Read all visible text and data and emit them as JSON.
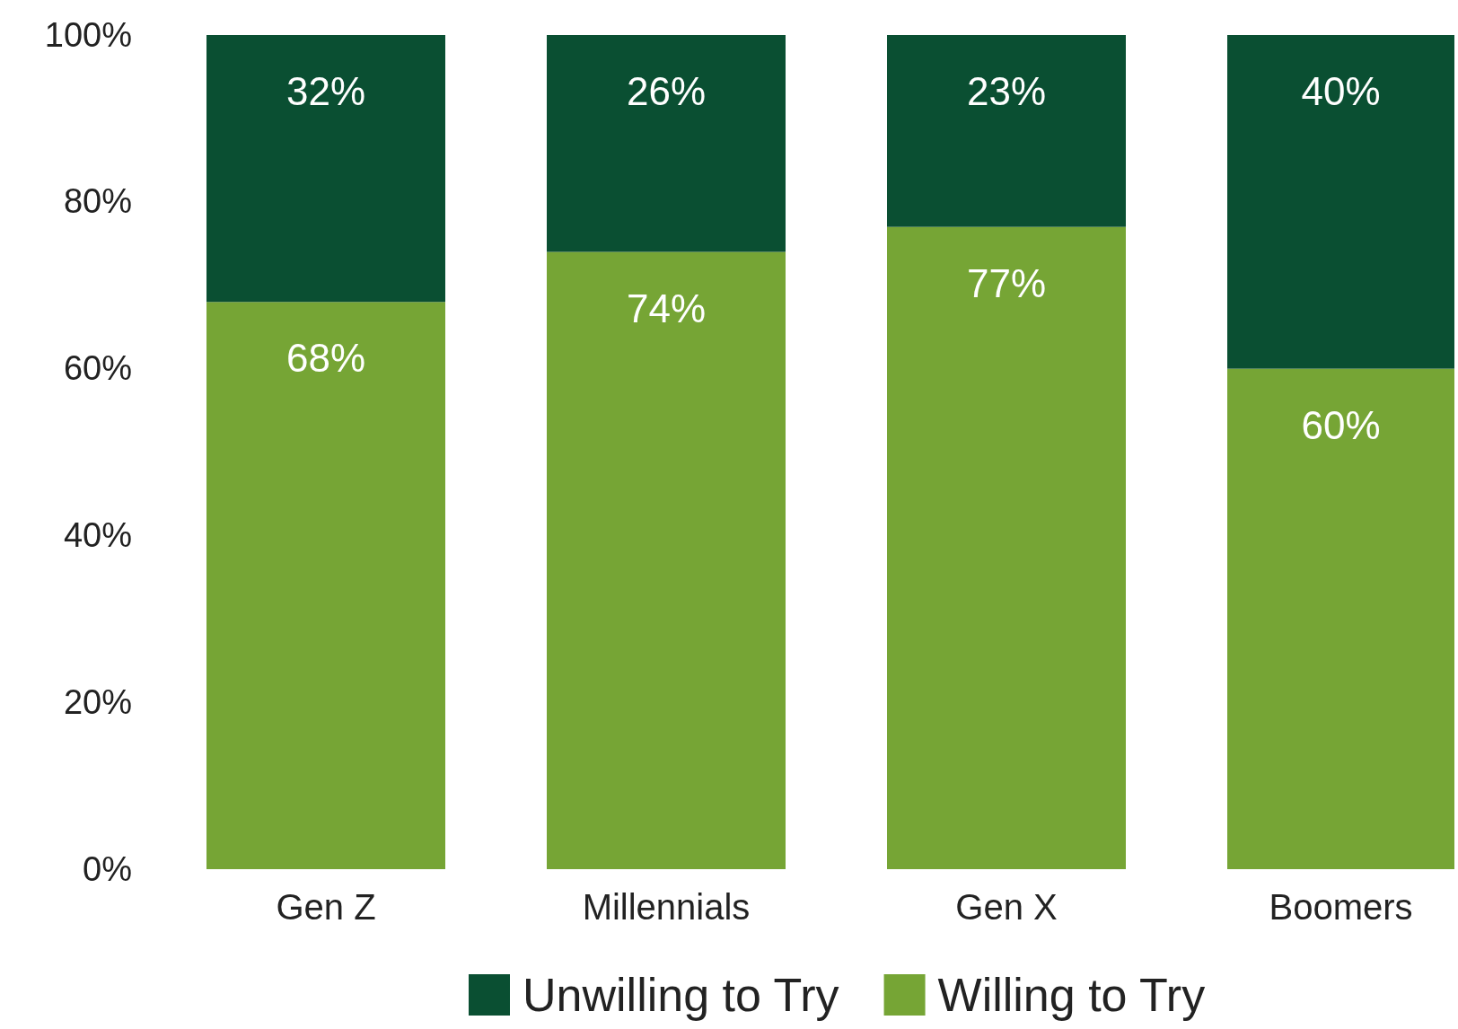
{
  "chart_data": {
    "type": "bar",
    "stacked": true,
    "categories": [
      "Gen Z",
      "Millennials",
      "Gen X",
      "Boomers"
    ],
    "series": [
      {
        "name": "Willing to Try",
        "color": "#76a535",
        "values": [
          68,
          74,
          77,
          60
        ],
        "value_labels": [
          "68%",
          "74%",
          "77%",
          "60%"
        ]
      },
      {
        "name": "Unwilling to Try",
        "color": "#0a4f32",
        "values": [
          32,
          26,
          23,
          40
        ],
        "value_labels": [
          "32%",
          "26%",
          "23%",
          "40%"
        ]
      }
    ],
    "ylim": [
      0,
      100
    ],
    "yticks": [
      {
        "value": 0,
        "label": "0%"
      },
      {
        "value": 20,
        "label": "20%"
      },
      {
        "value": 40,
        "label": "40%"
      },
      {
        "value": 60,
        "label": "60%"
      },
      {
        "value": 80,
        "label": "80%"
      },
      {
        "value": 100,
        "label": "100%"
      }
    ],
    "legend": "bottom",
    "grid": false
  }
}
